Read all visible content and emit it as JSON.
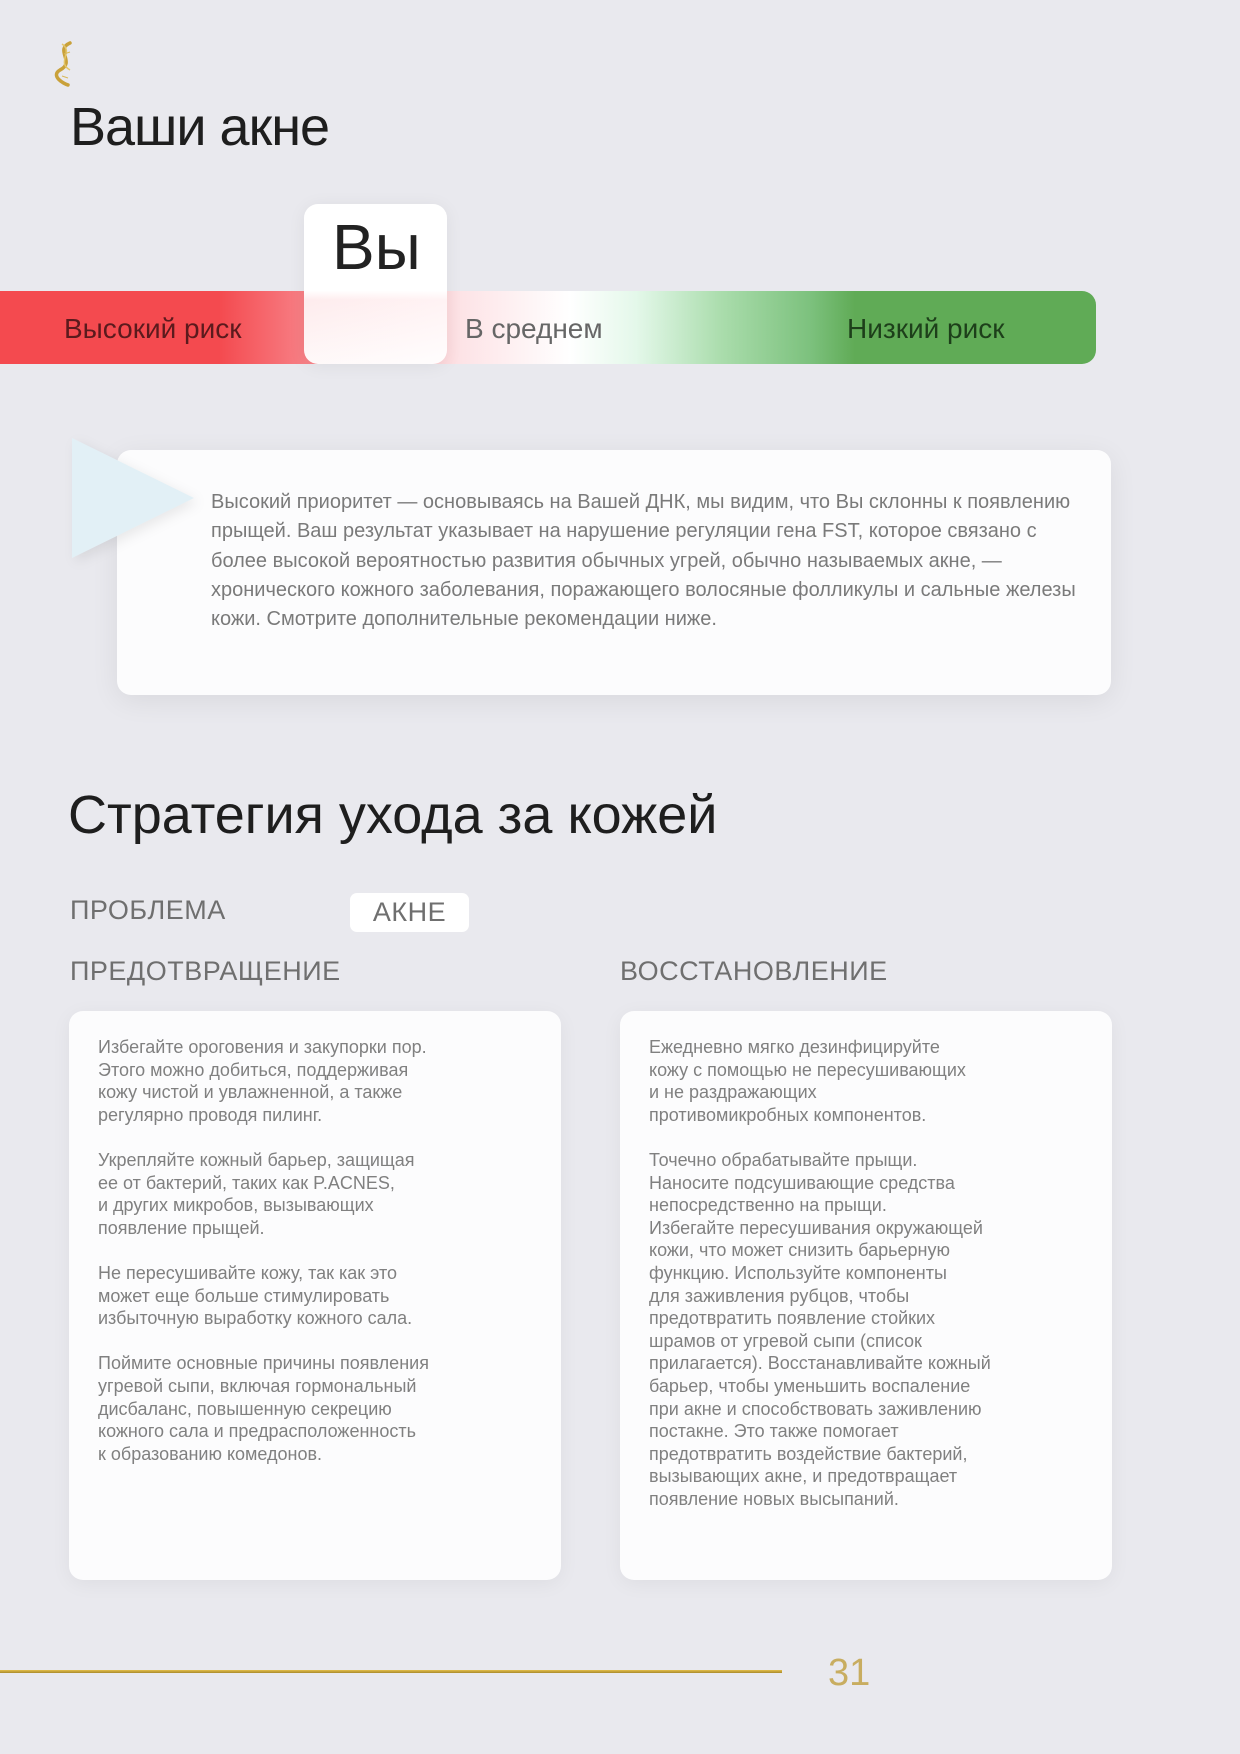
{
  "logo": {
    "icon": "dna-helix-icon",
    "color": "#c9a13a"
  },
  "title": "Ваши акне",
  "risk_scale": {
    "marker_label": "Вы",
    "labels": {
      "high": "Высокий риск",
      "average": "В среднем",
      "low": "Низкий риск"
    },
    "position": "high",
    "colors": {
      "high": "#f44a4f",
      "low": "#60ab56"
    }
  },
  "result_card": {
    "text": "Высокий приоритет — основываясь на Вашей ДНК, мы видим, что Вы склонны к появлению прыщей. Ваш результат указывает на нарушение регуляции гена FST, которое связано с более высокой вероятностью развития обычных угрей, обычно называемых акне, — хронического кожного заболевания, поражающего волосяные фолликулы и сальные железы кожи. Смотрите дополнительные рекомендации ниже."
  },
  "strategy": {
    "title": "Стратегия ухода за кожей",
    "problem_label": "ПРОБЛЕМА",
    "problem_value": "АКНЕ",
    "prevention": {
      "heading": "ПРЕДОТВРАЩЕНИЕ",
      "paragraphs": [
        "Избегайте ороговения и закупорки пор.\nЭтого можно добиться, поддерживая\nкожу чистой и увлажненной, а также\nрегулярно проводя пилинг.",
        "Укрепляйте кожный барьер, защищая\nее от бактерий, таких как P.ACNES,\nи других микробов, вызывающих\nпоявление прыщей.",
        "Не пересушивайте кожу, так как это\nможет еще больше стимулировать\nизбыточную выработку кожного сала.",
        "Поймите основные причины появления\nугревой сыпи, включая гормональный\nдисбаланс, повышенную секрецию\nкожного сала и предрасположенность\nк образованию комедонов."
      ]
    },
    "recovery": {
      "heading": "ВОССТАНОВЛЕНИЕ",
      "paragraphs": [
        "Ежедневно мягко дезинфицируйте\nкожу с помощью не пересушивающих\nи не раздражающих\nпротивомикробных компонентов.",
        "Точечно обрабатывайте прыщи.\nНаносите подсушивающие средства\nнепосредственно на прыщи.\nИзбегайте пересушивания окружающей\nкожи, что может снизить барьерную\nфункцию. Используйте компоненты\nдля заживления рубцов, чтобы\nпредотвратить появление стойких\nшрамов от угревой сыпи (список\nприлагается). Восстанавливайте кожный\nбарьер, чтобы уменьшить воспаление\nпри акне и способствовать заживлению\nпостакне. Это также помогает\nпредотвратить воздействие бактерий,\nвызывающих акне, и предотвращает\nпоявление новых высыпаний."
      ]
    }
  },
  "footer": {
    "page_number": "31"
  }
}
